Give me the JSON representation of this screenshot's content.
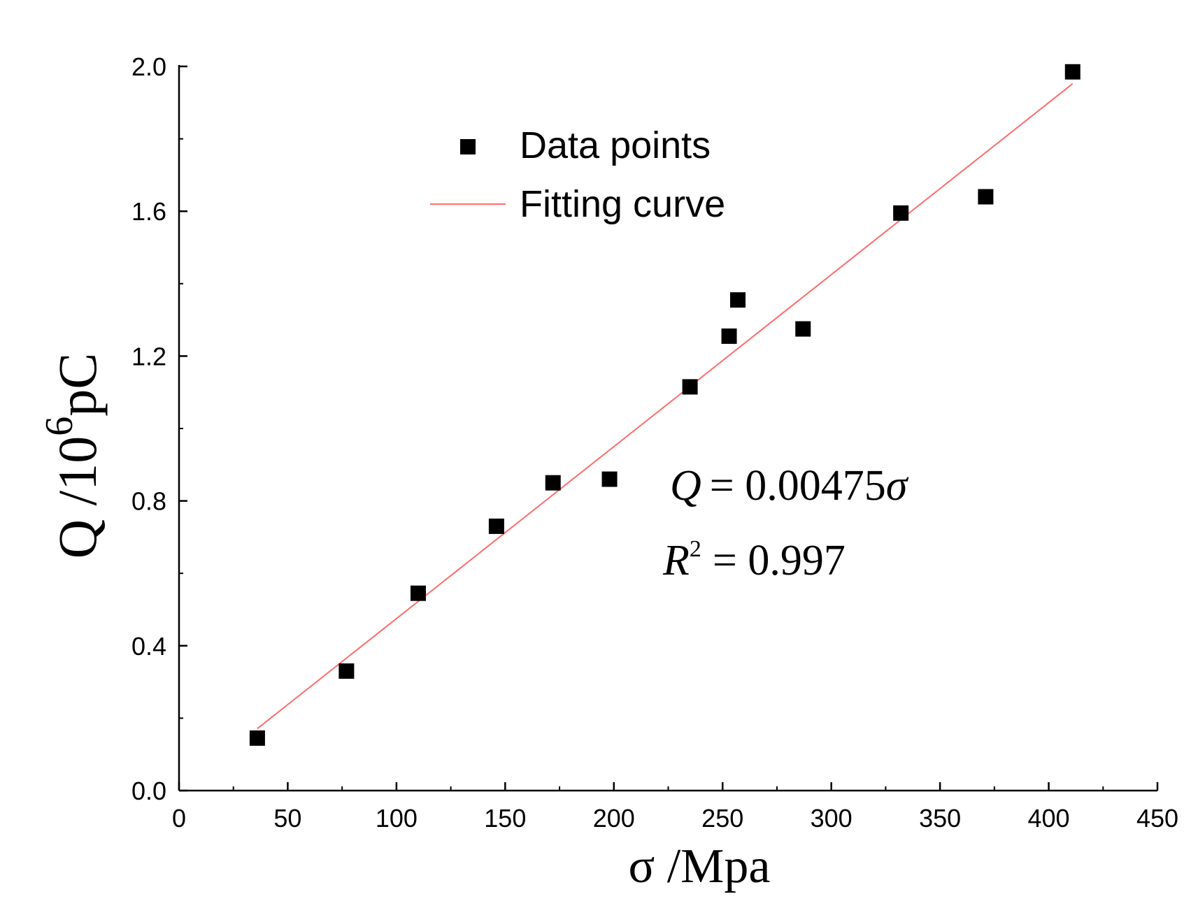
{
  "chart_data": {
    "type": "scatter",
    "title": "",
    "xlabel": "σ /Mpa",
    "ylabel": {
      "main": "Q /10",
      "sup": "6",
      "unit": "pC"
    },
    "xlim": [
      0,
      450
    ],
    "ylim": [
      0,
      2.0
    ],
    "xticks": [
      0,
      50,
      100,
      150,
      200,
      250,
      300,
      350,
      400,
      450
    ],
    "yticks": [
      0.0,
      0.4,
      0.8,
      1.2,
      1.6,
      2.0
    ],
    "ytick_labels": [
      "0.0",
      "0.4",
      "0.8",
      "1.2",
      "1.6",
      "2.0"
    ],
    "series": [
      {
        "name": "Data points",
        "marker": "square",
        "color": "#000000",
        "points": [
          {
            "x": 36,
            "y": 0.145
          },
          {
            "x": 77,
            "y": 0.33
          },
          {
            "x": 110,
            "y": 0.545
          },
          {
            "x": 146,
            "y": 0.73
          },
          {
            "x": 172,
            "y": 0.85
          },
          {
            "x": 198,
            "y": 0.86
          },
          {
            "x": 235,
            "y": 1.115
          },
          {
            "x": 253,
            "y": 1.255
          },
          {
            "x": 257,
            "y": 1.355
          },
          {
            "x": 287,
            "y": 1.275
          },
          {
            "x": 332,
            "y": 1.595
          },
          {
            "x": 371,
            "y": 1.64
          },
          {
            "x": 411,
            "y": 1.985
          }
        ]
      },
      {
        "name": "Fitting curve",
        "type": "line",
        "color": "#ff6b6b",
        "slope": 0.00475,
        "x_range": [
          36,
          411
        ]
      }
    ],
    "annotation": {
      "equation": {
        "lhs": "Q",
        "rhs": "= 0.00475",
        "var": "σ"
      },
      "r2": {
        "lhs": "R",
        "sup": "2",
        "rhs": "= 0.997"
      }
    },
    "legend_position": "top-center"
  }
}
